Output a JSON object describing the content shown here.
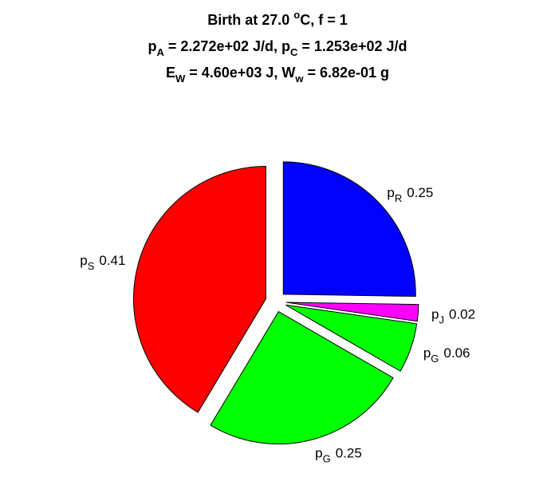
{
  "chart_data": {
    "type": "pie",
    "title": [
      [
        {
          "text": "Birth at 27.0 "
        },
        {
          "sup": "o"
        },
        {
          "text": "C, f = 1"
        }
      ],
      [
        {
          "text": "p"
        },
        {
          "sub": "A"
        },
        {
          "text": " = 2.272e+02 J/d, p"
        },
        {
          "sub": "C"
        },
        {
          "text": " = 1.253e+02 J/d"
        }
      ],
      [
        {
          "text": "E"
        },
        {
          "sub": "W"
        },
        {
          "text": " = 4.60e+03 J, W"
        },
        {
          "sub": "w"
        },
        {
          "text": " = 6.82e-01 g"
        }
      ]
    ],
    "categories": [
      [
        {
          "text": "p"
        },
        {
          "sub": "R"
        }
      ],
      [
        {
          "text": "p"
        },
        {
          "sub": "J"
        }
      ],
      [
        {
          "text": "p"
        },
        {
          "sub": "G"
        }
      ],
      [
        {
          "text": "p"
        },
        {
          "sub": "G"
        }
      ],
      [
        {
          "text": "p"
        },
        {
          "sub": "S"
        }
      ]
    ],
    "values": [
      0.25,
      0.02,
      0.06,
      0.25,
      0.41
    ],
    "colors": [
      "#0000ff",
      "#ff00ff",
      "#00ff00",
      "#00ff00",
      "#ff0000"
    ]
  }
}
